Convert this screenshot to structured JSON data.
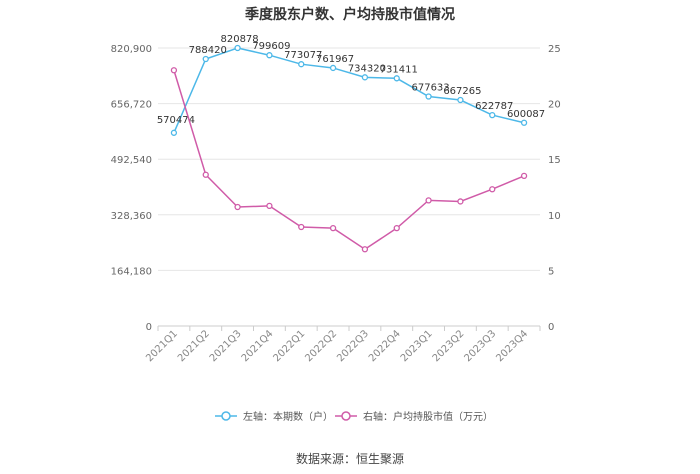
{
  "title": "季度股东户数、户均持股市值情况",
  "source": "数据来源：恒生聚源",
  "chart_data": {
    "type": "line",
    "categories": [
      "2021Q1",
      "2021Q2",
      "2021Q3",
      "2021Q4",
      "2022Q1",
      "2022Q2",
      "2022Q3",
      "2022Q4",
      "2023Q1",
      "2023Q2",
      "2023Q3",
      "2023Q4"
    ],
    "series": [
      {
        "name": "左轴：本期数（户）",
        "axis": "left",
        "color": "#4db8e8",
        "values": [
          570474,
          788420,
          820878,
          799609,
          773077,
          761967,
          734320,
          731411,
          677633,
          667265,
          622787,
          600087
        ],
        "labels": [
          "570474",
          "788420",
          "820878",
          "799609",
          "773077",
          "761967",
          "734320",
          "731411",
          "677633",
          "667265",
          "622787",
          "600087"
        ]
      },
      {
        "name": "右轴：户均持股市值（万元）",
        "axis": "right",
        "color": "#d05ba8",
        "values": [
          23.0,
          13.6,
          10.7,
          10.8,
          8.9,
          8.8,
          6.9,
          8.8,
          11.3,
          11.2,
          12.3,
          13.5
        ]
      }
    ],
    "y_left": {
      "ylim": [
        0,
        820900
      ],
      "ticks": [
        0,
        164180,
        328360,
        492540,
        656720,
        820900
      ],
      "tick_labels": [
        "0",
        "164,180",
        "328,360",
        "492,540",
        "656,720",
        "820,900"
      ]
    },
    "y_right": {
      "ylim": [
        0,
        25
      ],
      "ticks": [
        0,
        5,
        10,
        15,
        20,
        25
      ],
      "tick_labels": [
        "0",
        "5",
        "10",
        "15",
        "20",
        "25"
      ]
    },
    "grid": true,
    "legend": "bottom-center"
  }
}
